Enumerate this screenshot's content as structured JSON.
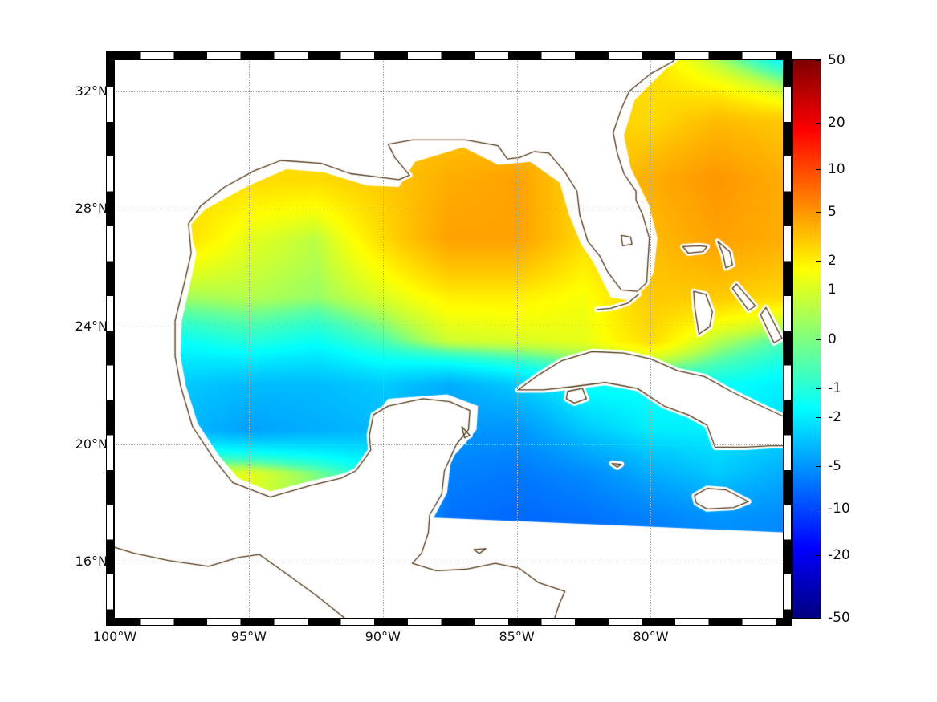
{
  "colors": {
    "background": "#ffffff",
    "coast": "#4f3413",
    "land": "#ffffff",
    "grid_line": "#a8a8a8",
    "frame": "#000000"
  },
  "chart_data": {
    "type": "heatmap",
    "title": "",
    "xlabel": "",
    "ylabel": "",
    "grid_on": true,
    "lon_range": [
      -100,
      -75.07
    ],
    "lat_range": [
      14.1,
      33.06
    ],
    "x_ticks": [
      {
        "label": "100°W",
        "lon": -100
      },
      {
        "label": "95°W",
        "lon": -95
      },
      {
        "label": "90°W",
        "lon": -90
      },
      {
        "label": "85°W",
        "lon": -85
      },
      {
        "label": "80°W",
        "lon": -80
      }
    ],
    "y_ticks": [
      {
        "label": "32°N",
        "lat": 32
      },
      {
        "label": "28°N",
        "lat": 28
      },
      {
        "label": "24°N",
        "lat": 24
      },
      {
        "label": "20°N",
        "lat": 20
      },
      {
        "label": "16°N",
        "lat": 16
      }
    ],
    "colorbar": {
      "position": "right",
      "colormap": "jet",
      "scale": "symlog",
      "vmin": -50,
      "vmax": 50,
      "ticks": [
        50,
        20,
        10,
        5,
        2,
        1,
        0,
        -1,
        -2,
        -5,
        -10,
        -20,
        -50
      ]
    },
    "grid": {
      "lons": [
        -100,
        -97.5,
        -95,
        -92.5,
        -90,
        -87.5,
        -85,
        -82.5,
        -80,
        -77.5,
        -75
      ],
      "lats": [
        33,
        31,
        29,
        27,
        25,
        23.5,
        22,
        20.5,
        19,
        17.5,
        16
      ],
      "values": [
        [
          2,
          2,
          2,
          2,
          2,
          2,
          2,
          2.5,
          2.5,
          0.5,
          -1.5
        ],
        [
          2,
          2,
          2,
          2.5,
          3,
          3,
          3,
          3,
          2.5,
          3.5,
          3
        ],
        [
          2,
          2.5,
          2.5,
          2.5,
          3,
          4,
          4.5,
          2.5,
          4,
          5,
          4
        ],
        [
          2,
          2.5,
          1.2,
          0.6,
          2.5,
          4.5,
          4.5,
          2.5,
          3.5,
          4.5,
          4
        ],
        [
          0,
          0.3,
          0.5,
          0.2,
          1,
          2,
          2,
          1.5,
          3,
          3,
          2.5
        ],
        [
          -1.5,
          -1.5,
          -1,
          -1.5,
          -0.5,
          0.8,
          1,
          1.2,
          2.5,
          0.5,
          -0.5
        ],
        [
          -2.5,
          -3,
          -3.5,
          -3.5,
          -3,
          -4,
          -3,
          -1.5,
          -1.5,
          -1.5,
          -2
        ],
        [
          -2,
          -3.5,
          -4.5,
          -4,
          -3.5,
          -5,
          -5,
          -3,
          -2,
          -2,
          -2.5
        ],
        [
          0.5,
          1,
          1.2,
          0,
          -1.5,
          -6,
          -6.5,
          -5.5,
          -4,
          -3,
          -4
        ],
        [
          1,
          1,
          1,
          0,
          -2,
          -7,
          -7.5,
          -7,
          -6,
          -5,
          -5.5
        ],
        [
          1,
          1,
          1,
          0,
          -2,
          -8,
          -8,
          -8,
          -7,
          -6,
          -6
        ]
      ]
    }
  },
  "geo": {
    "data_region": [
      [
        -97.25,
        27.4
      ],
      [
        -96.6,
        28.0
      ],
      [
        -95.0,
        28.8
      ],
      [
        -93.6,
        29.35
      ],
      [
        -92.2,
        29.25
      ],
      [
        -90.6,
        28.8
      ],
      [
        -89.4,
        28.75
      ],
      [
        -88.8,
        29.6
      ],
      [
        -87.0,
        30.1
      ],
      [
        -85.7,
        29.5
      ],
      [
        -84.5,
        29.6
      ],
      [
        -83.4,
        28.9
      ],
      [
        -83.05,
        27.8
      ],
      [
        -82.6,
        26.8
      ],
      [
        -82.15,
        26.2
      ],
      [
        -81.5,
        25.0
      ],
      [
        -80.6,
        24.85
      ],
      [
        -79.9,
        25.8
      ],
      [
        -79.75,
        27.0
      ],
      [
        -80.05,
        28.1
      ],
      [
        -80.75,
        29.4
      ],
      [
        -81.0,
        30.5
      ],
      [
        -80.6,
        31.7
      ],
      [
        -79.5,
        32.7
      ],
      [
        -79.05,
        33.2
      ],
      [
        -74.9,
        33.2
      ],
      [
        -74.9,
        17.0
      ],
      [
        -88.1,
        17.5
      ],
      [
        -87.6,
        18.35
      ],
      [
        -87.45,
        19.5
      ],
      [
        -86.95,
        20.0
      ],
      [
        -86.5,
        20.5
      ],
      [
        -86.45,
        21.3
      ],
      [
        -87.6,
        21.7
      ],
      [
        -89.8,
        21.55
      ],
      [
        -90.2,
        21.1
      ],
      [
        -90.15,
        20.1
      ],
      [
        -90.9,
        19.2
      ],
      [
        -91.5,
        19.0
      ],
      [
        -92.7,
        18.75
      ],
      [
        -94.2,
        18.4
      ],
      [
        -95.4,
        18.85
      ],
      [
        -96.1,
        19.6
      ],
      [
        -96.9,
        20.7
      ],
      [
        -97.35,
        22.0
      ],
      [
        -97.55,
        23.0
      ],
      [
        -97.5,
        24.2
      ],
      [
        -97.2,
        25.4
      ],
      [
        -96.95,
        26.5
      ]
    ],
    "mainland_coast": [
      [
        -83.6,
        14.05
      ],
      [
        -83.4,
        14.6
      ],
      [
        -83.2,
        15.0
      ],
      [
        -84.2,
        15.3
      ],
      [
        -84.9,
        15.78
      ],
      [
        -85.8,
        15.95
      ],
      [
        -86.9,
        15.75
      ],
      [
        -88.0,
        15.7
      ],
      [
        -88.9,
        15.95
      ],
      [
        -88.55,
        16.3
      ],
      [
        -88.3,
        17.0
      ],
      [
        -88.25,
        17.6
      ],
      [
        -87.8,
        18.3
      ],
      [
        -87.7,
        19.1
      ],
      [
        -87.45,
        19.6
      ],
      [
        -87.25,
        20.0
      ],
      [
        -86.8,
        20.5
      ],
      [
        -86.75,
        21.15
      ],
      [
        -87.5,
        21.45
      ],
      [
        -88.5,
        21.55
      ],
      [
        -89.8,
        21.3
      ],
      [
        -90.35,
        21.0
      ],
      [
        -90.5,
        20.3
      ],
      [
        -90.45,
        19.8
      ],
      [
        -91.0,
        19.1
      ],
      [
        -91.55,
        18.85
      ],
      [
        -92.7,
        18.6
      ],
      [
        -94.2,
        18.2
      ],
      [
        -95.6,
        18.7
      ],
      [
        -96.3,
        19.5
      ],
      [
        -97.1,
        20.6
      ],
      [
        -97.55,
        22.0
      ],
      [
        -97.75,
        23.0
      ],
      [
        -97.75,
        24.2
      ],
      [
        -97.4,
        25.5
      ],
      [
        -97.15,
        26.5
      ],
      [
        -97.25,
        27.5
      ],
      [
        -96.8,
        28.1
      ],
      [
        -95.9,
        28.75
      ],
      [
        -94.8,
        29.3
      ],
      [
        -93.8,
        29.65
      ],
      [
        -92.3,
        29.55
      ],
      [
        -91.2,
        29.2
      ],
      [
        -90.3,
        29.1
      ],
      [
        -89.4,
        29.0
      ],
      [
        -89.0,
        29.15
      ],
      [
        -89.55,
        29.75
      ],
      [
        -89.8,
        30.2
      ],
      [
        -88.9,
        30.35
      ],
      [
        -88.0,
        30.35
      ],
      [
        -86.9,
        30.35
      ],
      [
        -85.7,
        30.15
      ],
      [
        -85.35,
        29.7
      ],
      [
        -84.9,
        29.75
      ],
      [
        -84.35,
        29.95
      ],
      [
        -83.8,
        29.9
      ],
      [
        -83.2,
        29.25
      ],
      [
        -82.75,
        28.6
      ],
      [
        -82.65,
        27.8
      ],
      [
        -82.35,
        26.9
      ],
      [
        -81.9,
        26.4
      ],
      [
        -81.6,
        25.85
      ],
      [
        -81.1,
        25.25
      ],
      [
        -80.5,
        25.2
      ],
      [
        -80.15,
        25.5
      ],
      [
        -80.1,
        26.3
      ],
      [
        -80.05,
        27.0
      ],
      [
        -80.3,
        27.8
      ],
      [
        -80.55,
        28.3
      ],
      [
        -80.55,
        28.6
      ],
      [
        -81.0,
        29.2
      ],
      [
        -81.25,
        29.9
      ],
      [
        -81.4,
        30.6
      ],
      [
        -81.1,
        31.4
      ],
      [
        -80.8,
        32.0
      ],
      [
        -80.0,
        32.6
      ],
      [
        -79.2,
        33.0
      ],
      [
        -78.85,
        33.3
      ]
    ],
    "pacific_coast": [
      [
        -91.3,
        14.0
      ],
      [
        -92.4,
        14.8
      ],
      [
        -93.6,
        15.6
      ],
      [
        -94.6,
        16.25
      ],
      [
        -95.4,
        16.15
      ],
      [
        -96.5,
        15.85
      ],
      [
        -98.0,
        16.05
      ],
      [
        -99.3,
        16.3
      ],
      [
        -100.2,
        16.55
      ]
    ],
    "cuba": [
      [
        -75.05,
        20.95
      ],
      [
        -76.0,
        21.35
      ],
      [
        -77.0,
        21.8
      ],
      [
        -78.0,
        22.3
      ],
      [
        -79.0,
        22.5
      ],
      [
        -80.0,
        22.9
      ],
      [
        -81.0,
        23.1
      ],
      [
        -82.2,
        23.15
      ],
      [
        -83.3,
        22.85
      ],
      [
        -84.2,
        22.35
      ],
      [
        -84.95,
        21.85
      ],
      [
        -84.0,
        21.85
      ],
      [
        -83.0,
        21.95
      ],
      [
        -81.7,
        22.1
      ],
      [
        -80.5,
        21.9
      ],
      [
        -79.5,
        21.3
      ],
      [
        -78.6,
        21.0
      ],
      [
        -77.9,
        20.65
      ],
      [
        -77.6,
        19.9
      ],
      [
        -76.5,
        19.9
      ],
      [
        -75.5,
        19.95
      ],
      [
        -75.05,
        19.95
      ]
    ],
    "islands": [
      {
        "name": "jamaica",
        "points": [
          [
            -78.37,
            18.25
          ],
          [
            -77.9,
            18.5
          ],
          [
            -77.2,
            18.45
          ],
          [
            -76.35,
            18.05
          ],
          [
            -76.9,
            17.85
          ],
          [
            -77.9,
            17.8
          ],
          [
            -78.3,
            18.0
          ]
        ]
      },
      {
        "name": "isla-de-la-juventud",
        "points": [
          [
            -83.1,
            21.8
          ],
          [
            -82.55,
            21.9
          ],
          [
            -82.4,
            21.55
          ],
          [
            -82.85,
            21.4
          ],
          [
            -83.15,
            21.55
          ]
        ]
      },
      {
        "name": "grand-cayman",
        "points": [
          [
            -81.45,
            19.35
          ],
          [
            -81.1,
            19.32
          ],
          [
            -81.25,
            19.22
          ]
        ]
      },
      {
        "name": "grand-bahama",
        "points": [
          [
            -78.8,
            26.72
          ],
          [
            -78.2,
            26.75
          ],
          [
            -77.9,
            26.72
          ],
          [
            -78.05,
            26.55
          ],
          [
            -78.6,
            26.5
          ]
        ]
      },
      {
        "name": "abaco",
        "points": [
          [
            -77.5,
            26.9
          ],
          [
            -77.05,
            26.55
          ],
          [
            -76.95,
            26.1
          ],
          [
            -77.2,
            26.0
          ],
          [
            -77.3,
            26.45
          ]
        ]
      },
      {
        "name": "andros",
        "points": [
          [
            -78.4,
            25.2
          ],
          [
            -77.95,
            25.1
          ],
          [
            -77.7,
            24.5
          ],
          [
            -77.8,
            24.0
          ],
          [
            -78.2,
            23.75
          ],
          [
            -78.35,
            24.6
          ]
        ]
      },
      {
        "name": "eleuthera",
        "points": [
          [
            -76.8,
            25.45
          ],
          [
            -76.1,
            24.7
          ],
          [
            -76.35,
            24.55
          ],
          [
            -76.95,
            25.3
          ]
        ]
      },
      {
        "name": "long-island",
        "points": [
          [
            -75.7,
            24.65
          ],
          [
            -75.1,
            23.6
          ],
          [
            -75.4,
            23.45
          ],
          [
            -75.9,
            24.4
          ]
        ]
      },
      {
        "name": "cozumel",
        "points": [
          [
            -87.05,
            20.6
          ],
          [
            -86.75,
            20.3
          ],
          [
            -86.95,
            20.22
          ]
        ]
      },
      {
        "name": "roatan",
        "points": [
          [
            -86.6,
            16.42
          ],
          [
            -86.15,
            16.45
          ],
          [
            -86.4,
            16.28
          ]
        ]
      },
      {
        "name": "lake-okeechobee",
        "points": [
          [
            -81.1,
            27.1
          ],
          [
            -80.75,
            27.05
          ],
          [
            -80.7,
            26.8
          ],
          [
            -81.05,
            26.75
          ]
        ]
      }
    ],
    "open_lines": [
      {
        "name": "florida-keys",
        "points": [
          [
            -80.45,
            25.1
          ],
          [
            -80.85,
            24.8
          ],
          [
            -81.5,
            24.62
          ],
          [
            -82.0,
            24.58
          ]
        ]
      }
    ]
  }
}
